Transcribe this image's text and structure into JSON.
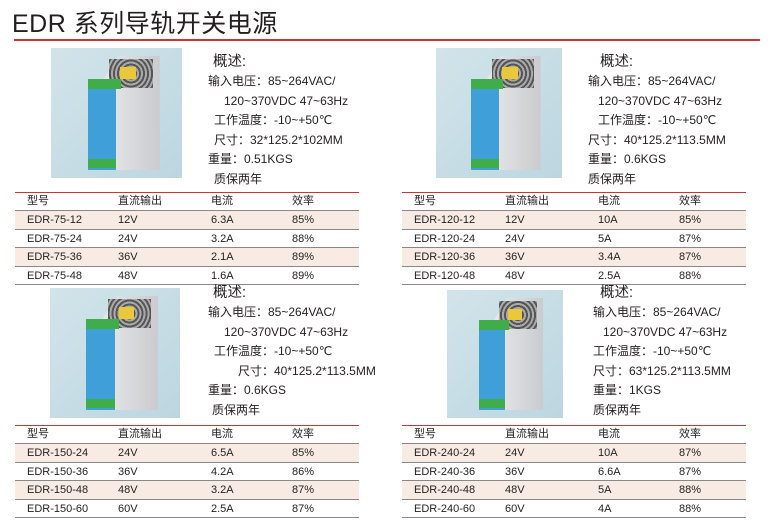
{
  "title": "EDR 系列导轨开关电源",
  "colors": {
    "accent": "#c9353d",
    "row_alt": "#f8ebe4"
  },
  "table_headers": [
    "型号",
    "直流输出",
    "电流",
    "效率"
  ],
  "products": [
    {
      "overview": "概述:",
      "lines": [
        "输入电压：85~264VAC/",
        "120~370VDC 47~63Hz",
        "工作温度：-10~+50℃",
        "尺寸：32*125.2*102MM",
        "重量：0.51KGS",
        "质保两年"
      ],
      "rows": [
        [
          "EDR-75-12",
          "12V",
          "6.3A",
          "85%"
        ],
        [
          "EDR-75-24",
          "24V",
          "3.2A",
          "88%"
        ],
        [
          "EDR-75-36",
          "36V",
          "2.1A",
          "89%"
        ],
        [
          "EDR-75-48",
          "48V",
          "1.6A",
          "89%"
        ]
      ]
    },
    {
      "overview": "概述:",
      "lines": [
        "输入电压：85~264VAC/",
        "120~370VDC 47~63Hz",
        "工作温度：-10~+50℃",
        "尺寸：40*125.2*113.5MM",
        "重量：0.6KGS",
        "质保两年"
      ],
      "rows": [
        [
          "EDR-120-12",
          "12V",
          "10A",
          "85%"
        ],
        [
          "EDR-120-24",
          "24V",
          "5A",
          "87%"
        ],
        [
          "EDR-120-36",
          "36V",
          "3.4A",
          "87%"
        ],
        [
          "EDR-120-48",
          "48V",
          "2.5A",
          "88%"
        ]
      ]
    },
    {
      "overview": "概述:",
      "lines": [
        "输入电压：85~264VAC/",
        "120~370VDC 47~63Hz",
        "工作温度：-10~+50℃",
        "尺寸：40*125.2*113.5MM",
        "重量：0.6KGS",
        "质保两年"
      ],
      "rows": [
        [
          "EDR-150-24",
          "24V",
          "6.5A",
          "85%"
        ],
        [
          "EDR-150-36",
          "36V",
          "4.2A",
          "86%"
        ],
        [
          "EDR-150-48",
          "48V",
          "3.2A",
          "87%"
        ],
        [
          "EDR-150-60",
          "60V",
          "2.5A",
          "87%"
        ]
      ]
    },
    {
      "overview": "概述:",
      "lines": [
        "输入电压：85~264VAC/",
        "120~370VDC 47~63Hz",
        "工作温度：-10~+50℃",
        "尺寸：63*125.2*113.5MM",
        "重量：1KGS",
        "质保两年"
      ],
      "rows": [
        [
          "EDR-240-24",
          "24V",
          "10A",
          "87%"
        ],
        [
          "EDR-240-36",
          "36V",
          "6.6A",
          "87%"
        ],
        [
          "EDR-240-48",
          "48V",
          "5A",
          "88%"
        ],
        [
          "EDR-240-60",
          "60V",
          "4A",
          "88%"
        ]
      ]
    }
  ]
}
